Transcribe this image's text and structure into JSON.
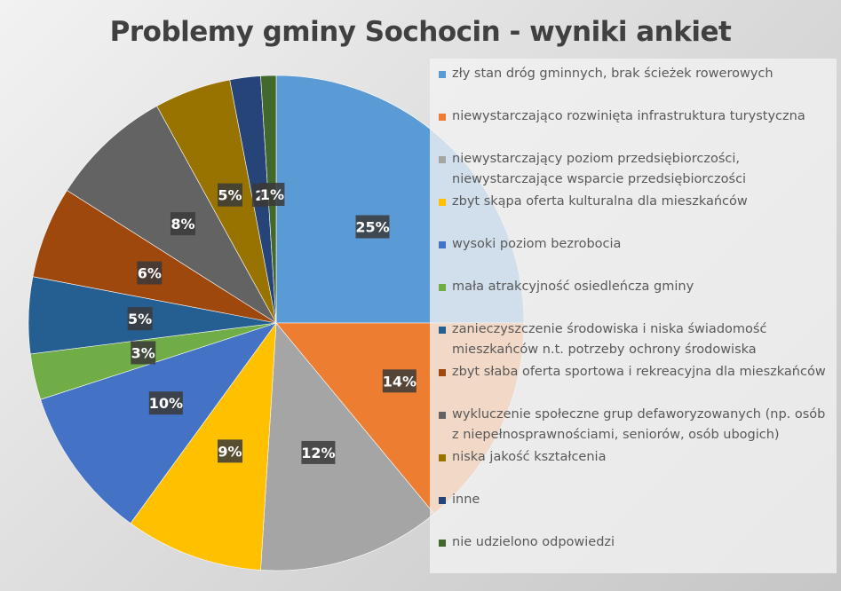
{
  "chart_data": {
    "type": "pie",
    "title": "Problemy gminy Sochocin - wyniki ankiet",
    "legend_position": "right",
    "slices": [
      {
        "label": "zły stan dróg gminnych, brak ścieżek rowerowych",
        "value": 25,
        "display": "25%",
        "color": "#5b9bd5"
      },
      {
        "label": "niewystarczająco rozwinięta infrastruktura turystyczna",
        "value": 14,
        "display": "14%",
        "color": "#ed7d31"
      },
      {
        "label": "niewystarczający poziom przedsiębiorczości, niewystarczające wsparcie przedsiębiorczości",
        "value": 12,
        "display": "12%",
        "color": "#a5a5a5"
      },
      {
        "label": "zbyt skąpa oferta kulturalna dla mieszkańców",
        "value": 9,
        "display": "9%",
        "color": "#ffc000"
      },
      {
        "label": "wysoki poziom bezrobocia",
        "value": 10,
        "display": "10%",
        "color": "#4472c4"
      },
      {
        "label": "mała atrakcyjność osiedleńcza gminy",
        "value": 3,
        "display": "3%",
        "color": "#70ad47"
      },
      {
        "label": "zanieczyszczenie środowiska i niska świadomość mieszkańców n.t. potrzeby ochrony środowiska",
        "value": 5,
        "display": "5%",
        "color": "#255e91"
      },
      {
        "label": "zbyt słaba oferta sportowa i rekreacyjna dla mieszkańców",
        "value": 6,
        "display": "6%",
        "color": "#9e480e"
      },
      {
        "label": "wykluczenie społeczne grup defaworyzowanych (np. osób z niepełnosprawnościami, seniorów, osób ubogich)",
        "value": 8,
        "display": "8%",
        "color": "#636363"
      },
      {
        "label": "niska jakość kształcenia",
        "value": 5,
        "display": "5%",
        "color": "#997300"
      },
      {
        "label": "inne",
        "value": 2,
        "display": "2",
        "color": "#264478"
      },
      {
        "label": "nie udzielono odpowiedzi",
        "value": 1,
        "display": "1%",
        "color": "#43682b"
      }
    ]
  }
}
